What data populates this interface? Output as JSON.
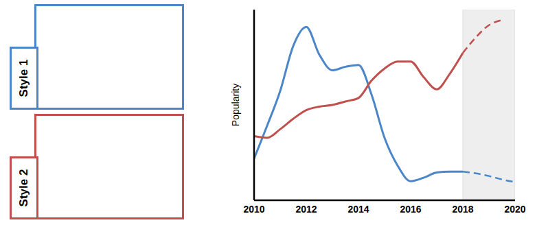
{
  "chart_data": {
    "type": "line",
    "y_label": "Popularity",
    "legend": "left",
    "tick_labels": "x",
    "x": [
      2010,
      2010.5,
      2011,
      2011.5,
      2012,
      2012.5,
      2013,
      2013.5,
      2014,
      2014.5,
      2015,
      2015.5,
      2016,
      2016.5,
      2017,
      2017.5,
      2018,
      2018.5,
      2019,
      2019.5,
      2020
    ],
    "xlim": [
      2010,
      2020
    ],
    "xticks": [
      2010,
      2012,
      2014,
      2016,
      2018,
      2020
    ],
    "ylim": [
      0,
      11
    ],
    "series": [
      {
        "name": "Style 1",
        "color": "#4a86c8",
        "line_style": "solid",
        "values": [
          2.4,
          4.3,
          6.3,
          8.9,
          10.0,
          8.4,
          7.5,
          7.7,
          7.8,
          6.1,
          3.6,
          2.0,
          1.1,
          1.3,
          1.6,
          1.65,
          1.65,
          null,
          null,
          null,
          null
        ],
        "forecast": [
          null,
          null,
          null,
          null,
          null,
          null,
          null,
          null,
          null,
          null,
          null,
          null,
          null,
          null,
          null,
          null,
          1.65,
          1.55,
          1.4,
          1.2,
          1.05
        ]
      },
      {
        "name": "Style 2",
        "color": "#c0504d",
        "line_style": "solid",
        "values": [
          3.7,
          3.6,
          4.1,
          4.7,
          5.2,
          5.4,
          5.5,
          5.7,
          5.9,
          6.9,
          7.6,
          8.0,
          8.0,
          7.1,
          6.4,
          7.3,
          8.5,
          null,
          null,
          null,
          null
        ],
        "forecast": [
          null,
          null,
          null,
          null,
          null,
          null,
          null,
          null,
          null,
          null,
          null,
          null,
          null,
          null,
          null,
          null,
          8.5,
          9.4,
          10.1,
          10.4,
          null
        ]
      }
    ]
  }
}
